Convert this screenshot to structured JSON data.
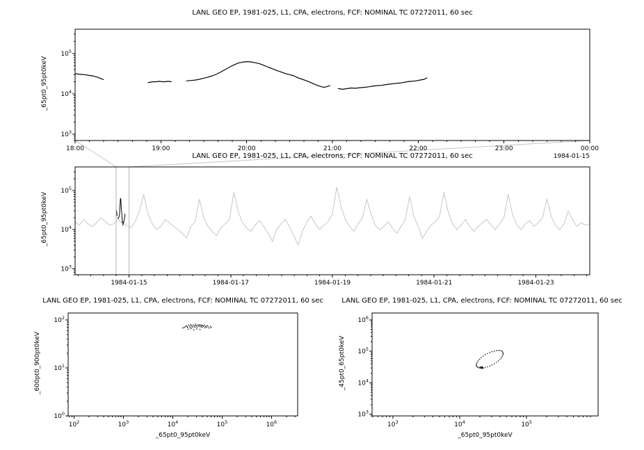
{
  "chart_data": [
    {
      "id": "p1",
      "type": "line",
      "title": "LANL GEO EP, 1981-025, L1, CPA, electrons, FCF: NOMINAL TC 07272011, 60 sec",
      "ylabel": "_65pt0_95pt0keV",
      "xlabel": "",
      "x_axis": {
        "scale": "linear",
        "min": 18,
        "max": 24,
        "minor_step": 0.16667,
        "context_label": "1984-01-15",
        "major": [
          {
            "v": 18,
            "label": "18:00"
          },
          {
            "v": 19,
            "label": "19:00"
          },
          {
            "v": 20,
            "label": "20:00"
          },
          {
            "v": 21,
            "label": "21:00"
          },
          {
            "v": 22,
            "label": "22:00"
          },
          {
            "v": 23,
            "label": "23:00"
          },
          {
            "v": 24,
            "label": "00:00"
          }
        ]
      },
      "y_axis": {
        "scale": "log",
        "min": 2.845,
        "max": 5.602,
        "major_exps": [
          3,
          4,
          5
        ]
      },
      "series": [
        {
          "name": "electron-flux-65-95keV",
          "type": "line",
          "color": "#000000",
          "width": 1.2,
          "segments": [
            [
              [
                18.0,
                32000
              ],
              [
                18.03,
                31000
              ],
              [
                18.07,
                30500
              ],
              [
                18.1,
                30000
              ],
              [
                18.13,
                29500
              ],
              [
                18.17,
                28500
              ],
              [
                18.2,
                28000
              ],
              [
                18.23,
                27000
              ],
              [
                18.27,
                25500
              ],
              [
                18.3,
                24000
              ],
              [
                18.33,
                22500
              ]
            ],
            [
              [
                18.85,
                19000
              ],
              [
                18.88,
                19500
              ],
              [
                18.92,
                20000
              ],
              [
                18.95,
                20000
              ],
              [
                18.98,
                20500
              ],
              [
                19.02,
                20000
              ],
              [
                19.05,
                20000
              ],
              [
                19.08,
                20500
              ],
              [
                19.12,
                20000
              ]
            ],
            [
              [
                19.3,
                21000
              ],
              [
                19.35,
                21500
              ],
              [
                19.4,
                22000
              ],
              [
                19.45,
                23000
              ],
              [
                19.5,
                24500
              ],
              [
                19.55,
                26000
              ],
              [
                19.6,
                28000
              ],
              [
                19.65,
                31000
              ],
              [
                19.7,
                35000
              ],
              [
                19.75,
                40000
              ],
              [
                19.8,
                46000
              ],
              [
                19.85,
                52000
              ],
              [
                19.9,
                58000
              ],
              [
                19.95,
                61000
              ],
              [
                20.0,
                63000
              ],
              [
                20.05,
                62000
              ],
              [
                20.1,
                59000
              ],
              [
                20.15,
                56000
              ],
              [
                20.2,
                51000
              ],
              [
                20.25,
                46000
              ],
              [
                20.3,
                42000
              ],
              [
                20.35,
                38000
              ],
              [
                20.4,
                35000
              ],
              [
                20.45,
                32000
              ],
              [
                20.5,
                30000
              ],
              [
                20.55,
                28000
              ],
              [
                20.6,
                25000
              ],
              [
                20.65,
                23000
              ],
              [
                20.7,
                21000
              ],
              [
                20.75,
                19000
              ],
              [
                20.8,
                17000
              ],
              [
                20.85,
                15500
              ],
              [
                20.9,
                14500
              ],
              [
                20.93,
                15000
              ],
              [
                20.97,
                16000
              ]
            ],
            [
              [
                21.07,
                13500
              ],
              [
                21.12,
                13000
              ],
              [
                21.17,
                13500
              ],
              [
                21.22,
                14000
              ],
              [
                21.27,
                13800
              ],
              [
                21.32,
                14200
              ],
              [
                21.37,
                14500
              ],
              [
                21.42,
                15000
              ],
              [
                21.47,
                15500
              ],
              [
                21.52,
                16000
              ],
              [
                21.57,
                16200
              ],
              [
                21.62,
                17000
              ],
              [
                21.67,
                17500
              ],
              [
                21.72,
                18000
              ],
              [
                21.77,
                18500
              ],
              [
                21.82,
                19000
              ],
              [
                21.87,
                20000
              ],
              [
                21.92,
                20500
              ],
              [
                21.97,
                21000
              ],
              [
                22.02,
                22000
              ],
              [
                22.07,
                23000
              ],
              [
                22.1,
                25000
              ]
            ]
          ]
        }
      ]
    },
    {
      "id": "p2",
      "type": "line",
      "title": "LANL GEO EP, 1981-025, L1, CPA, electrons, FCF: NOMINAL TC 07272011, 60 sec",
      "ylabel": "_65pt0_95pt0keV",
      "xlabel": "",
      "x_axis": {
        "scale": "linear",
        "min": 13.94,
        "max": 24.06,
        "minor_step": 0.25,
        "major": [
          {
            "v": 15,
            "label": "1984-01-15"
          },
          {
            "v": 17,
            "label": "1984-01-17"
          },
          {
            "v": 19,
            "label": "1984-01-19"
          },
          {
            "v": 21,
            "label": "1984-01-21"
          },
          {
            "v": 23,
            "label": "1984-01-23"
          }
        ]
      },
      "y_axis": {
        "scale": "log",
        "min": 2.845,
        "max": 5.602,
        "major_exps": [
          3,
          4,
          5
        ]
      },
      "zoom_box": {
        "x0": 14.75,
        "x1": 15.0,
        "color": "#b4b4b4"
      },
      "connect_from": "p1",
      "series": [
        {
          "name": "context-flux-overview",
          "type": "line",
          "color": "#c6c6c6",
          "width": 1,
          "x_start": 13.94,
          "x_step": 0.08433,
          "values": [
            16000,
            13000,
            18000,
            14000,
            12000,
            15000,
            20000,
            16000,
            13000,
            14000,
            18000,
            15000,
            13000,
            11000,
            16000,
            30000,
            80000,
            25000,
            14000,
            10000,
            12000,
            18000,
            15000,
            12000,
            10000,
            8000,
            6000,
            12000,
            16000,
            60000,
            20000,
            12000,
            9000,
            7000,
            11000,
            14000,
            18000,
            90000,
            30000,
            15000,
            11000,
            9000,
            13000,
            17000,
            12000,
            8000,
            5000,
            10000,
            14000,
            18000,
            12000,
            7000,
            4000,
            9000,
            15000,
            22000,
            14000,
            10000,
            13000,
            16000,
            25000,
            120000,
            40000,
            18000,
            12000,
            9000,
            14000,
            20000,
            60000,
            25000,
            13000,
            10000,
            12000,
            16000,
            11000,
            8000,
            12000,
            18000,
            70000,
            22000,
            12000,
            6000,
            9000,
            13000,
            16000,
            22000,
            90000,
            28000,
            14000,
            10000,
            13000,
            18000,
            12000,
            9000,
            12000,
            15000,
            18000,
            13000,
            10000,
            14000,
            20000,
            80000,
            24000,
            13000,
            10000,
            14000,
            17000,
            12000,
            15000,
            20000,
            60000,
            22000,
            13000,
            10000,
            14000,
            30000,
            18000,
            12000,
            15000,
            13000,
            14000
          ]
        },
        {
          "name": "highlighted-interval",
          "type": "line",
          "color": "#000000",
          "width": 1,
          "from_chart": "p1",
          "x_offset": 14,
          "x_scale": 0.0416667
        }
      ]
    },
    {
      "id": "p3",
      "type": "scatter",
      "title": "LANL GEO EP, 1981-025, L1, CPA, electrons, FCF: NOMINAL TC 07272011, 60 sec",
      "ylabel": "_600pt0_900pt0keV",
      "xlabel": "_65pt0_95pt0keV",
      "x_axis": {
        "scale": "log",
        "min": 1.88,
        "max": 6.53,
        "major_exps": [
          2,
          3,
          4,
          5,
          6
        ]
      },
      "y_axis": {
        "scale": "log",
        "min": 0,
        "max": 2.145,
        "major_exps": [
          0,
          1,
          2
        ]
      },
      "series": [
        {
          "name": "flux-600-900keV-vs-65-95keV",
          "type": "scatter",
          "color": "#1a1a1a",
          "points": [
            [
              16000,
              68
            ],
            [
              18000,
              72
            ],
            [
              19000,
              75
            ],
            [
              20000,
              70
            ],
            [
              21000,
              78
            ],
            [
              22000,
              74
            ],
            [
              22500,
              69
            ],
            [
              23000,
              80
            ],
            [
              24000,
              76
            ],
            [
              25000,
              72
            ],
            [
              26000,
              79
            ],
            [
              27000,
              74
            ],
            [
              28000,
              70
            ],
            [
              28500,
              77
            ],
            [
              29000,
              82
            ],
            [
              30000,
              75
            ],
            [
              31000,
              71
            ],
            [
              32000,
              78
            ],
            [
              33000,
              74
            ],
            [
              34000,
              80
            ],
            [
              35000,
              76
            ],
            [
              36000,
              72
            ],
            [
              37000,
              79
            ],
            [
              38000,
              75
            ],
            [
              39000,
              70
            ],
            [
              40000,
              77
            ],
            [
              42000,
              73
            ],
            [
              44000,
              78
            ],
            [
              46000,
              74
            ],
            [
              48000,
              71
            ],
            [
              50000,
              76
            ],
            [
              52000,
              72
            ],
            [
              55000,
              68
            ],
            [
              58000,
              74
            ],
            [
              60000,
              70
            ],
            [
              20500,
              64
            ],
            [
              23500,
              66
            ],
            [
              26500,
              62
            ],
            [
              30500,
              65
            ],
            [
              35500,
              63
            ],
            [
              17000,
              70
            ],
            [
              19500,
              73
            ],
            [
              41000,
              75
            ],
            [
              45000,
              69
            ],
            [
              24500,
              71
            ]
          ]
        }
      ]
    },
    {
      "id": "p4",
      "type": "scatter",
      "title": "LANL GEO EP, 1981-025, L1, CPA, electrons, FCF: NOMINAL TC 07272011, 60 sec",
      "ylabel": "_45pt0_65pt0keV",
      "xlabel": "_65pt0_95pt0keV",
      "x_axis": {
        "scale": "log",
        "min": 2.69,
        "max": 6.07,
        "major_exps": [
          3,
          4,
          5
        ]
      },
      "y_axis": {
        "scale": "log",
        "min": 2.95,
        "max": 6.22,
        "major_exps": [
          3,
          4,
          5,
          6
        ]
      },
      "series": [
        {
          "name": "flux-45-65keV-vs-65-95keV",
          "type": "scatter",
          "color": "#1a1a1a",
          "points": [
            [
              44700,
              85000
            ],
            [
              44300,
              91000
            ],
            [
              43500,
              99000
            ],
            [
              42000,
              104000
            ],
            [
              40000,
              107000
            ],
            [
              37900,
              108000
            ],
            [
              35500,
              106000
            ],
            [
              33000,
              102000
            ],
            [
              30500,
              98000
            ],
            [
              28200,
              92000
            ],
            [
              26000,
              85000
            ],
            [
              24100,
              78000
            ],
            [
              22400,
              70000
            ],
            [
              20900,
              63000
            ],
            [
              19800,
              56000
            ],
            [
              18900,
              50000
            ],
            [
              18300,
              45000
            ],
            [
              17900,
              41000
            ],
            [
              17800,
              37000
            ],
            [
              17900,
              34500
            ],
            [
              18300,
              32000
            ],
            [
              18900,
              30700
            ],
            [
              19800,
              29800
            ],
            [
              20900,
              29400
            ],
            [
              22400,
              29800
            ],
            [
              24100,
              30700
            ],
            [
              26000,
              32200
            ],
            [
              28200,
              34400
            ],
            [
              30500,
              37200
            ],
            [
              33000,
              40700
            ],
            [
              35500,
              45100
            ],
            [
              37900,
              50200
            ],
            [
              40100,
              56200
            ],
            [
              42000,
              63000
            ],
            [
              43400,
              70000
            ],
            [
              44400,
              78000
            ],
            [
              20500,
              30500
            ],
            [
              21500,
              29500
            ],
            [
              22000,
              31000
            ],
            [
              21000,
              32000
            ],
            [
              20000,
              31500
            ],
            [
              21800,
              30200
            ],
            [
              20800,
              29000
            ],
            [
              22500,
              30000
            ],
            [
              21200,
              31800
            ],
            [
              20300,
              30800
            ],
            [
              21600,
              32500
            ],
            [
              22200,
              28800
            ]
          ]
        }
      ]
    }
  ]
}
